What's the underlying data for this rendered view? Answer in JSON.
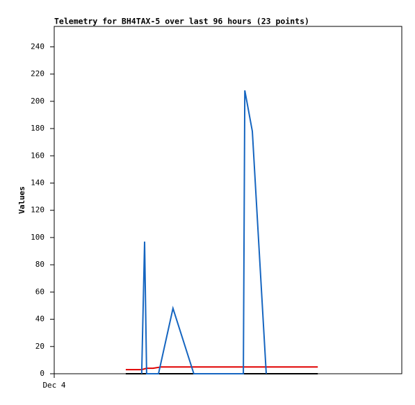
{
  "chart_data": {
    "type": "line",
    "title": "Telemetry for BH4TAX-5 over last 96 hours (23 points)",
    "y_label": "Values",
    "xlim": [
      0,
      120
    ],
    "xticks": [
      {
        "value": 0,
        "label": "Dec 4"
      }
    ],
    "ylim": [
      0,
      255
    ],
    "yticks": [
      0,
      20,
      40,
      60,
      80,
      100,
      120,
      140,
      160,
      180,
      200,
      220,
      240
    ],
    "grid": false,
    "series": [
      {
        "color": "#000000",
        "x": [
          24.7,
          91
        ],
        "values": [
          0,
          0
        ]
      },
      {
        "color": "#e00000",
        "x": [
          24.7,
          30.2,
          31.9,
          34.1,
          37,
          91
        ],
        "values": [
          3,
          3,
          4,
          4,
          5,
          5
        ]
      },
      {
        "color": "#1565c0",
        "x": [
          30.2,
          31.2,
          31.9,
          36,
          41,
          48.2,
          65.3,
          65.8,
          68.4,
          73.2
        ],
        "values": [
          0,
          97,
          0,
          0,
          48,
          0,
          0,
          208,
          178,
          0
        ]
      }
    ]
  }
}
